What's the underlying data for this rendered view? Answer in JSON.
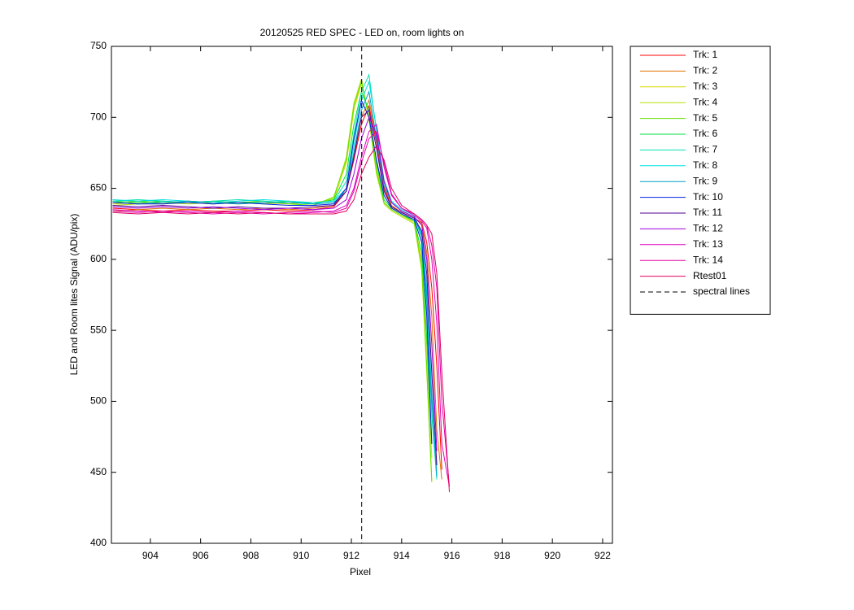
{
  "chart_data": {
    "type": "line",
    "title": "20120525 RED SPEC - LED on, room lights on",
    "x_label": "Pixel",
    "y_label": "LED and Room lites Signal (ADU/pix)",
    "x": [
      902.5,
      903.5,
      904.5,
      905.5,
      906.5,
      907.5,
      908.5,
      909.5,
      910.5,
      911.3,
      911.8,
      912.1,
      912.4,
      912.7,
      913,
      913.3,
      913.6,
      914,
      914.5,
      914.8,
      915,
      915.2,
      915.4,
      915.6,
      915.9
    ],
    "series": [
      {
        "name": "Trk: 1",
        "color": "#ff0000",
        "values": [
          636,
          635,
          634,
          635,
          634,
          634,
          635,
          634,
          635,
          637,
          648,
          670,
          695,
          708,
          682,
          650,
          637,
          633,
          629,
          626,
          612,
          580,
          525,
          452,
          null
        ]
      },
      {
        "name": "Trk: 2",
        "color": "#e07000",
        "values": [
          634,
          635,
          636,
          635,
          636,
          635,
          636,
          635,
          636,
          638,
          650,
          675,
          700,
          712,
          685,
          652,
          638,
          633,
          629,
          625,
          605,
          560,
          480,
          445,
          null
        ]
      },
      {
        "name": "Trk: 3",
        "color": "#d8d800",
        "values": [
          639,
          640,
          639,
          641,
          640,
          639,
          640,
          639,
          640,
          642,
          668,
          705,
          724,
          700,
          665,
          640,
          635,
          631,
          626,
          600,
          540,
          460,
          null,
          null,
          null
        ]
      },
      {
        "name": "Trk: 4",
        "color": "#b0e000",
        "values": [
          638,
          639,
          640,
          639,
          640,
          640,
          639,
          640,
          639,
          643,
          672,
          710,
          727,
          698,
          660,
          639,
          634,
          630,
          625,
          592,
          520,
          443,
          null,
          null,
          null
        ]
      },
      {
        "name": "Trk: 5",
        "color": "#60e000",
        "values": [
          640,
          641,
          640,
          640,
          639,
          640,
          641,
          639,
          638,
          644,
          670,
          708,
          725,
          700,
          662,
          640,
          635,
          631,
          627,
          596,
          525,
          444,
          null,
          null,
          null
        ]
      },
      {
        "name": "Trk: 6",
        "color": "#00e040",
        "values": [
          641,
          640,
          641,
          640,
          641,
          640,
          640,
          641,
          639,
          642,
          660,
          695,
          718,
          705,
          668,
          642,
          636,
          632,
          627,
          605,
          545,
          470,
          null,
          null,
          null
        ]
      },
      {
        "name": "Trk: 7",
        "color": "#00e0b0",
        "values": [
          641,
          642,
          641,
          640,
          641,
          642,
          641,
          640,
          640,
          641,
          655,
          688,
          718,
          730,
          690,
          655,
          640,
          634,
          630,
          615,
          570,
          490,
          445,
          null,
          null
        ]
      },
      {
        "name": "Trk: 8",
        "color": "#00e0e0",
        "values": [
          642,
          641,
          642,
          641,
          640,
          641,
          642,
          641,
          640,
          641,
          650,
          680,
          712,
          725,
          692,
          656,
          641,
          635,
          631,
          618,
          580,
          505,
          448,
          null,
          null
        ]
      },
      {
        "name": "Trk: 9",
        "color": "#00a0c8",
        "values": [
          640,
          639,
          640,
          641,
          640,
          639,
          640,
          640,
          639,
          640,
          648,
          675,
          705,
          718,
          685,
          652,
          640,
          634,
          630,
          617,
          575,
          500,
          447,
          null,
          null
        ]
      },
      {
        "name": "Trk: 10",
        "color": "#0020e0",
        "values": [
          640,
          639,
          639,
          640,
          639,
          640,
          639,
          638,
          638,
          639,
          650,
          685,
          712,
          700,
          670,
          645,
          636,
          632,
          628,
          612,
          560,
          470,
          null,
          null,
          null
        ]
      },
      {
        "name": "Trk: 11",
        "color": "#500090",
        "values": [
          638,
          637,
          638,
          637,
          636,
          637,
          636,
          636,
          637,
          638,
          648,
          672,
          700,
          705,
          678,
          648,
          637,
          633,
          629,
          620,
          590,
          520,
          455,
          null,
          null
        ]
      },
      {
        "name": "Trk: 12",
        "color": "#a000e0",
        "values": [
          637,
          636,
          637,
          636,
          637,
          636,
          635,
          636,
          635,
          636,
          642,
          660,
          685,
          700,
          688,
          655,
          640,
          634,
          630,
          624,
          600,
          540,
          465,
          null,
          null
        ]
      },
      {
        "name": "Trk: 13",
        "color": "#e000c0",
        "values": [
          635,
          634,
          633,
          634,
          633,
          634,
          633,
          632,
          633,
          634,
          638,
          650,
          672,
          690,
          695,
          665,
          645,
          636,
          631,
          627,
          622,
          600,
          555,
          470,
          440
        ]
      },
      {
        "name": "Trk: 14",
        "color": "#e000a0",
        "values": [
          634,
          633,
          634,
          633,
          632,
          633,
          632,
          633,
          634,
          633,
          636,
          648,
          668,
          685,
          690,
          668,
          646,
          636,
          632,
          628,
          624,
          610,
          580,
          500,
          440
        ]
      },
      {
        "name": "Rtest01",
        "color": "#e00060",
        "values": [
          633,
          632,
          633,
          632,
          633,
          632,
          633,
          632,
          632,
          632,
          634,
          642,
          660,
          672,
          680,
          670,
          650,
          638,
          632,
          628,
          624,
          618,
          590,
          520,
          436
        ]
      }
    ],
    "reference_line": {
      "name": "spectral lines",
      "x": 912.41,
      "color": "#000000",
      "dashed": true
    },
    "xlim": [
      902.45,
      922.39
    ],
    "ylim": [
      400,
      750
    ],
    "xticks": [
      904,
      906,
      908,
      910,
      912,
      914,
      916,
      918,
      920,
      922
    ],
    "yticks": [
      400,
      450,
      500,
      550,
      600,
      650,
      700,
      750
    ],
    "grid": false,
    "legend": "outside-right"
  }
}
